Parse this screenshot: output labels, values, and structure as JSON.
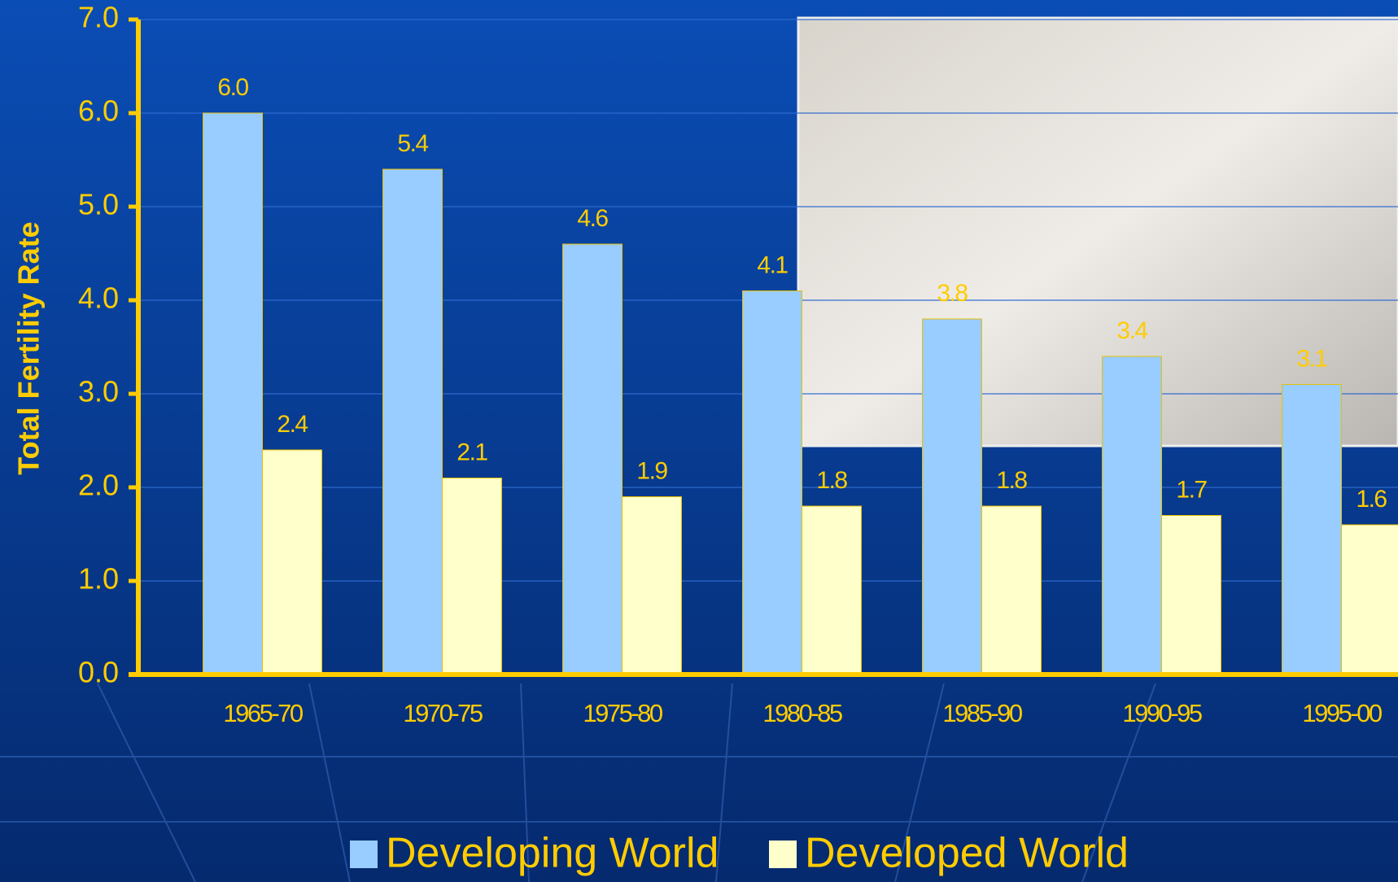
{
  "chart_data": {
    "type": "bar",
    "y_label": "Total Fertility Rate",
    "categories": [
      "1965-70",
      "1970-75",
      "1975-80",
      "1980-85",
      "1985-90",
      "1990-95",
      "1995-00"
    ],
    "series": [
      {
        "name": "Developing World",
        "color": "#99ccff",
        "values": [
          6.0,
          5.4,
          4.6,
          4.1,
          3.8,
          3.4,
          3.1
        ],
        "value_labels": [
          "6.0",
          "5.4",
          "4.6",
          "4.1",
          "3.8",
          "3.4",
          "3.1"
        ]
      },
      {
        "name": "Developed World",
        "color": "#ffffcc",
        "values": [
          2.4,
          2.1,
          1.9,
          1.8,
          1.8,
          1.7,
          1.6
        ],
        "value_labels": [
          "2.4",
          "2.1",
          "1.9",
          "1.8",
          "1.8",
          "1.7",
          "1.6"
        ]
      }
    ],
    "ylim": [
      0,
      7
    ],
    "yticks": [
      {
        "value": 0,
        "label": "0.0"
      },
      {
        "value": 1,
        "label": "1.0"
      },
      {
        "value": 2,
        "label": "2.0"
      },
      {
        "value": 3,
        "label": "3.0"
      },
      {
        "value": 4,
        "label": "4.0"
      },
      {
        "value": 5,
        "label": "5.0"
      },
      {
        "value": 6,
        "label": "6.0"
      },
      {
        "value": 7,
        "label": "7.0"
      }
    ],
    "grid": true,
    "legend": "bottom"
  }
}
